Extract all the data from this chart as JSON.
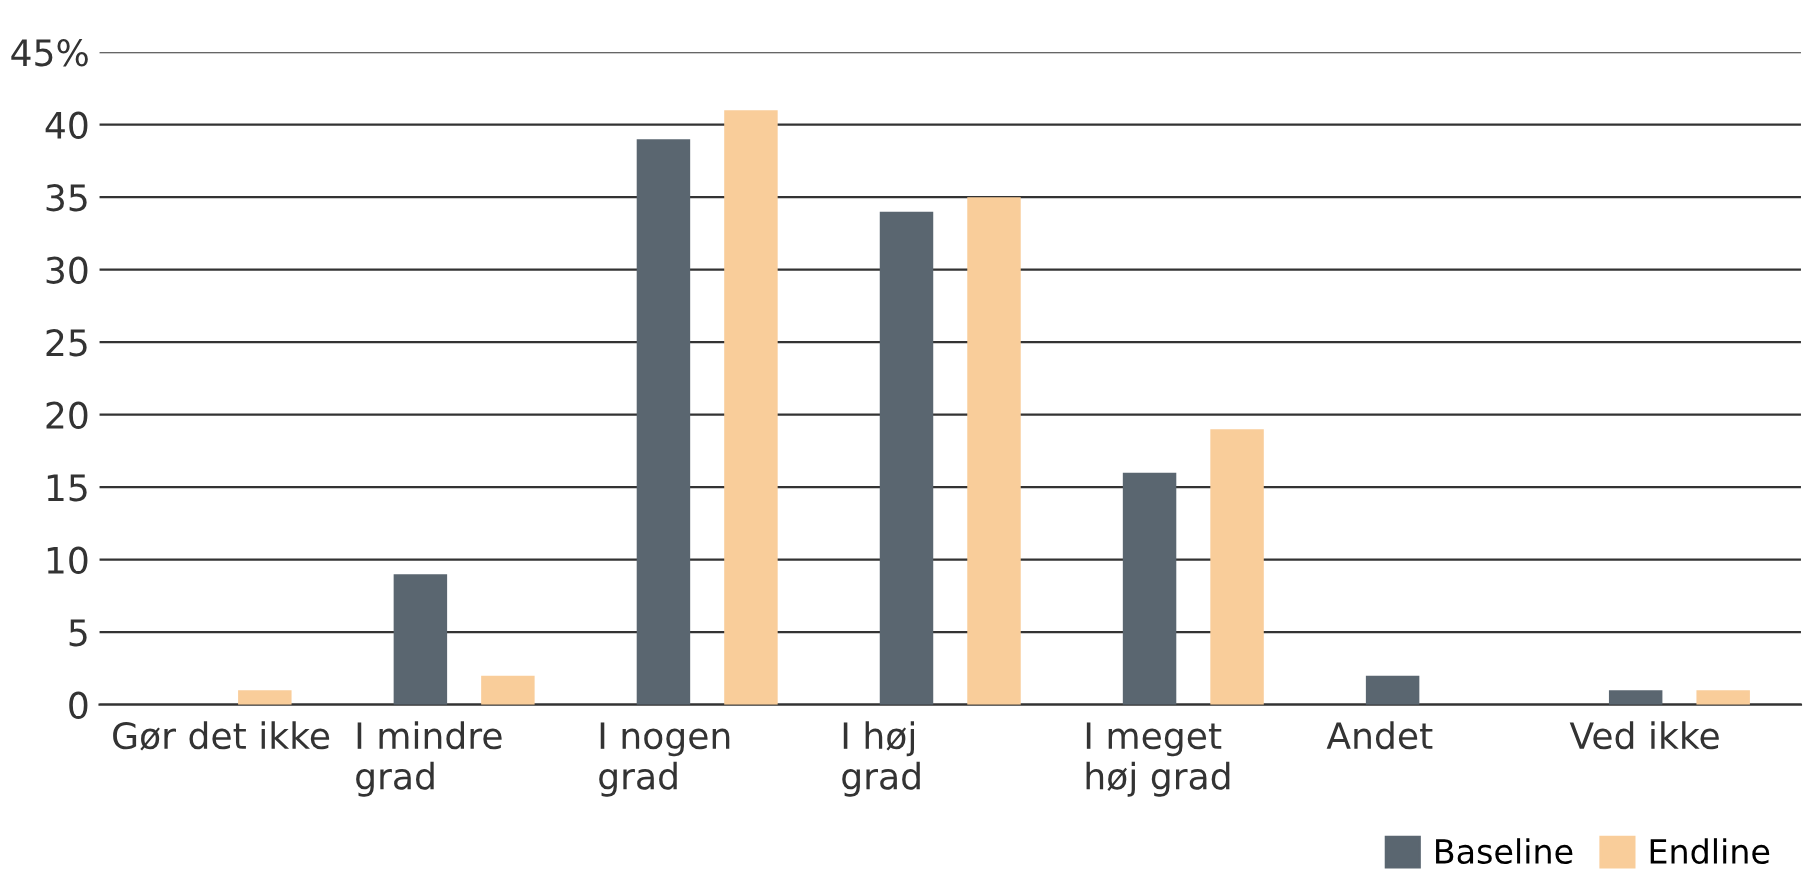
{
  "chart_data": {
    "type": "bar",
    "categories": [
      "Gør det ikke",
      "I mindre\ngrad",
      "I nogen\ngrad",
      "I høj\ngrad",
      "I meget\nhøj grad",
      "Andet",
      "Ved ikke"
    ],
    "series": [
      {
        "name": "Baseline",
        "color": "#5a6670",
        "values": [
          0,
          9,
          39,
          34,
          16,
          2,
          1
        ]
      },
      {
        "name": "Endline",
        "color": "#f9cd9a",
        "values": [
          1,
          2,
          41,
          35,
          19,
          0,
          1
        ]
      }
    ],
    "ylim": [
      0,
      45
    ],
    "yticks": [
      0,
      5,
      10,
      15,
      20,
      25,
      30,
      35,
      40,
      {
        "value": 45,
        "label": "45%"
      }
    ],
    "grid": "y",
    "legend": "bottom right"
  }
}
